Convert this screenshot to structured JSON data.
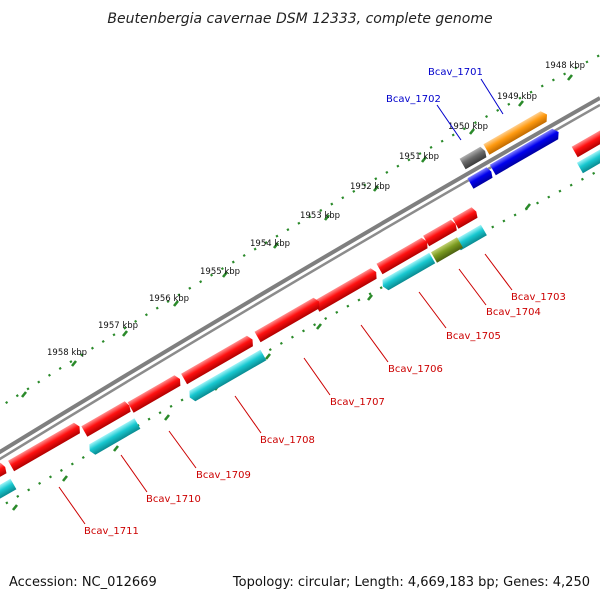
{
  "title": "Beutenbergia cavernae DSM 12333, complete genome",
  "footer": {
    "accession": "Accession: NC_012669",
    "topology": "Topology: circular; Length: 4,669,183 bp; Genes: 4,250"
  },
  "colors": {
    "backbone": "#7f7f7f",
    "tick": "#2a8a2a",
    "forward_cds": "#ff1010",
    "reverse_cds": "#18c8d0",
    "blue_feature": "#0000ee",
    "orange_feature": "#ff9a10",
    "gray_feature": "#6a6a6a",
    "olive_feature": "#7a9a20",
    "label_blue": "#0000cc",
    "label_red": "#cc0000"
  },
  "scale_labels": [
    "1948 kbp",
    "1949 kbp",
    "1950 kbp",
    "1951 kbp",
    "1952 kbp",
    "1953 kbp",
    "1954 kbp",
    "1955 kbp",
    "1956 kbp",
    "1957 kbp",
    "1958 kbp"
  ],
  "gene_labels": {
    "bcav_1701": "Bcav_1701",
    "bcav_1702": "Bcav_1702",
    "bcav_1703": "Bcav_1703",
    "bcav_1704": "Bcav_1704",
    "bcav_1705": "Bcav_1705",
    "bcav_1706": "Bcav_1706",
    "bcav_1707": "Bcav_1707",
    "bcav_1708": "Bcav_1708",
    "bcav_1709": "Bcav_1709",
    "bcav_1710": "Bcav_1710",
    "bcav_1711": "Bcav_1711"
  }
}
